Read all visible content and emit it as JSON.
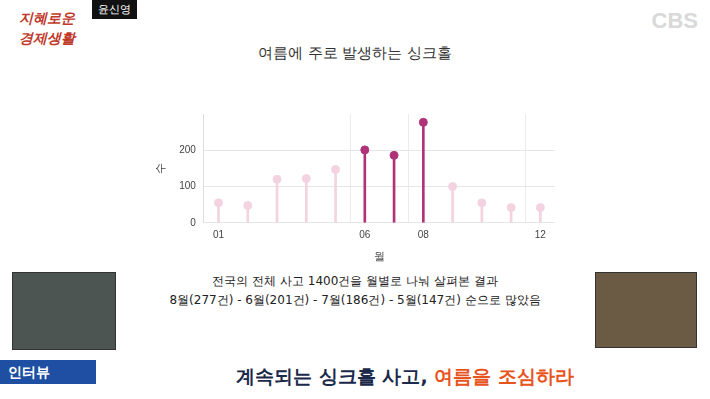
{
  "chart_data": {
    "type": "lollipop",
    "title": "여름에 주로 발생하는 싱크홀",
    "x_label": "월",
    "y_label": "수",
    "categories": [
      "01",
      null,
      null,
      null,
      null,
      "06",
      null,
      "08",
      null,
      null,
      null,
      "12"
    ],
    "values": [
      55,
      48,
      120,
      122,
      147,
      201,
      186,
      277,
      100,
      55,
      42,
      42
    ],
    "colors": [
      "#f3d3df",
      "#f3d3df",
      "#f3d3df",
      "#f3d3df",
      "#f3d3df",
      "#b0337a",
      "#b0337a",
      "#b0337a",
      "#f3d3df",
      "#f3d3df",
      "#f3d3df",
      "#f3d3df"
    ],
    "marker": "circle",
    "ylim": [
      0,
      300
    ],
    "yticks": [
      0,
      100,
      200
    ],
    "grid": true,
    "annotations": [
      "전국의 전체 사고 1400건을 월별로 나눠 살펴본 결과",
      "8월(277건) - 6월(201건) - 7월(186건) - 5월(147건) 순으로 많았음"
    ]
  },
  "broadcast": {
    "logo": [
      "지혜로운",
      "경제생활"
    ],
    "speaker": "윤신영",
    "channel": "CBS",
    "tag": "인터뷰",
    "headline": [
      "계속되는 싱크홀 사고, ",
      "여름을 조심하라"
    ]
  }
}
